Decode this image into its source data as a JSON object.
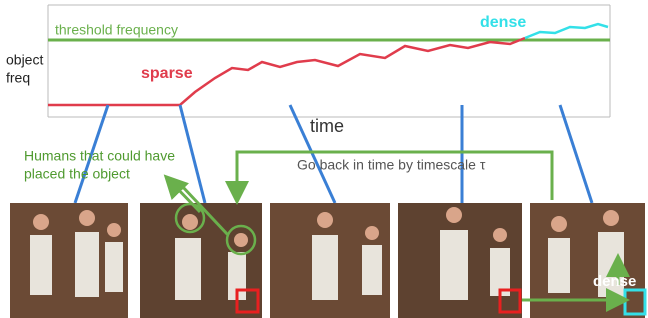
{
  "chart": {
    "threshold_label": "threshold frequency",
    "dense_label": "dense",
    "y_label": [
      "object",
      "freq"
    ],
    "sparse_label": "sparse",
    "x_label": "time"
  },
  "annotations": {
    "humans": [
      "Humans that could have",
      "placed the object"
    ],
    "go_back": "Go back in time by timescale τ",
    "dense": "dense"
  }
}
